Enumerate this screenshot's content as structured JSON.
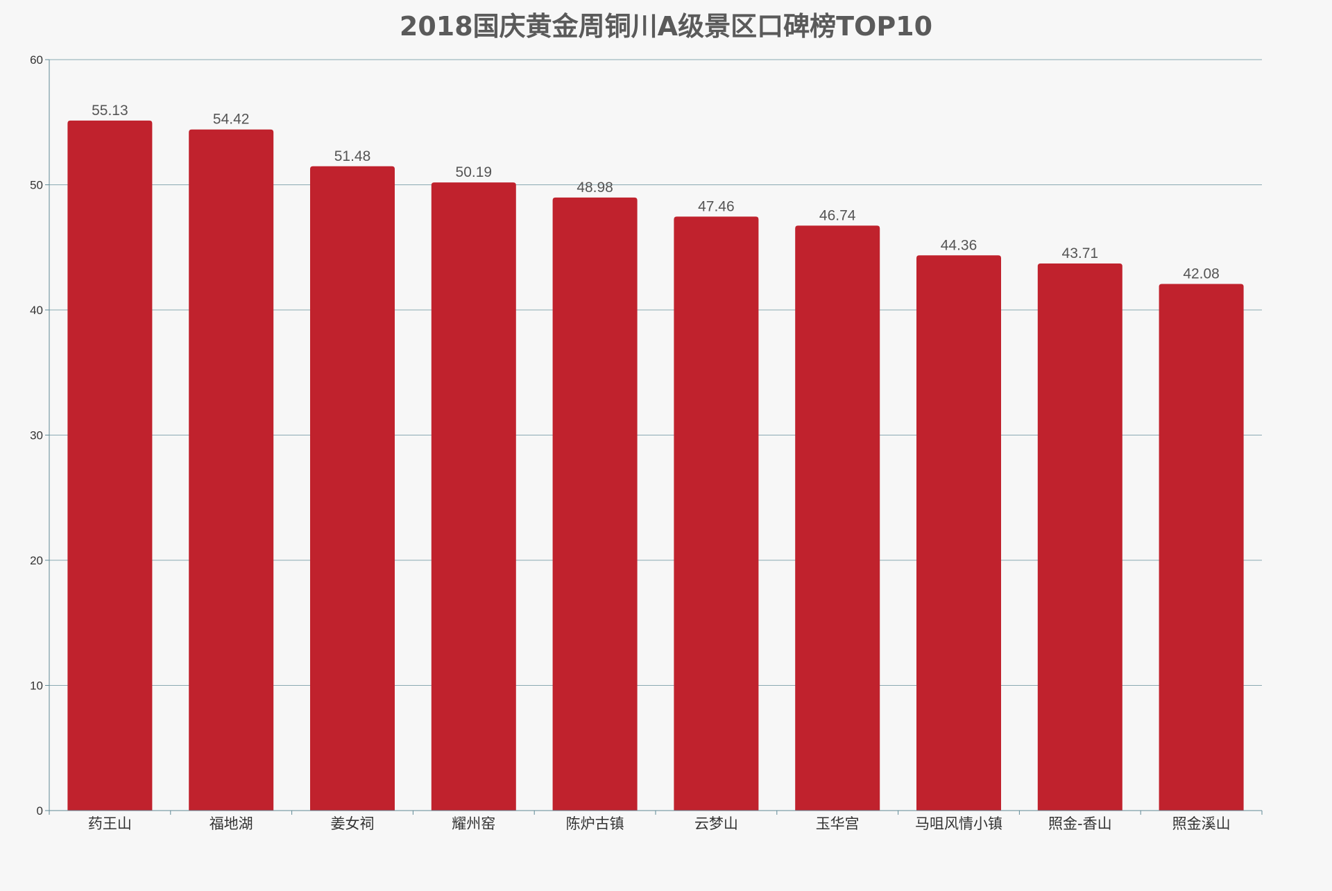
{
  "chart_data": {
    "type": "bar",
    "title": "2018国庆黄金周铜川A级景区口碑榜TOP10",
    "xlabel": "",
    "ylabel": "",
    "categories": [
      "药王山",
      "福地湖",
      "姜女祠",
      "耀州窑",
      "陈炉古镇",
      "云梦山",
      "玉华宫",
      "马咀风情小镇",
      "照金-香山",
      "照金溪山"
    ],
    "values": [
      55.13,
      54.42,
      51.48,
      50.19,
      48.98,
      47.46,
      46.74,
      44.36,
      43.71,
      42.08
    ],
    "value_labels": [
      "55.13",
      "54.42",
      "51.48",
      "50.19",
      "48.98",
      "47.46",
      "46.74",
      "44.36",
      "43.71",
      "42.08"
    ],
    "ylim": [
      0,
      60
    ],
    "yticks": [
      0,
      10,
      20,
      30,
      40,
      50,
      60
    ],
    "grid": true,
    "legend": "none"
  },
  "colors": {
    "background": "#f7f7f7",
    "bar": "#c0222d",
    "grid": "#8aa9b2",
    "axis": "#5f8a96",
    "title": "#5a5a5a"
  }
}
